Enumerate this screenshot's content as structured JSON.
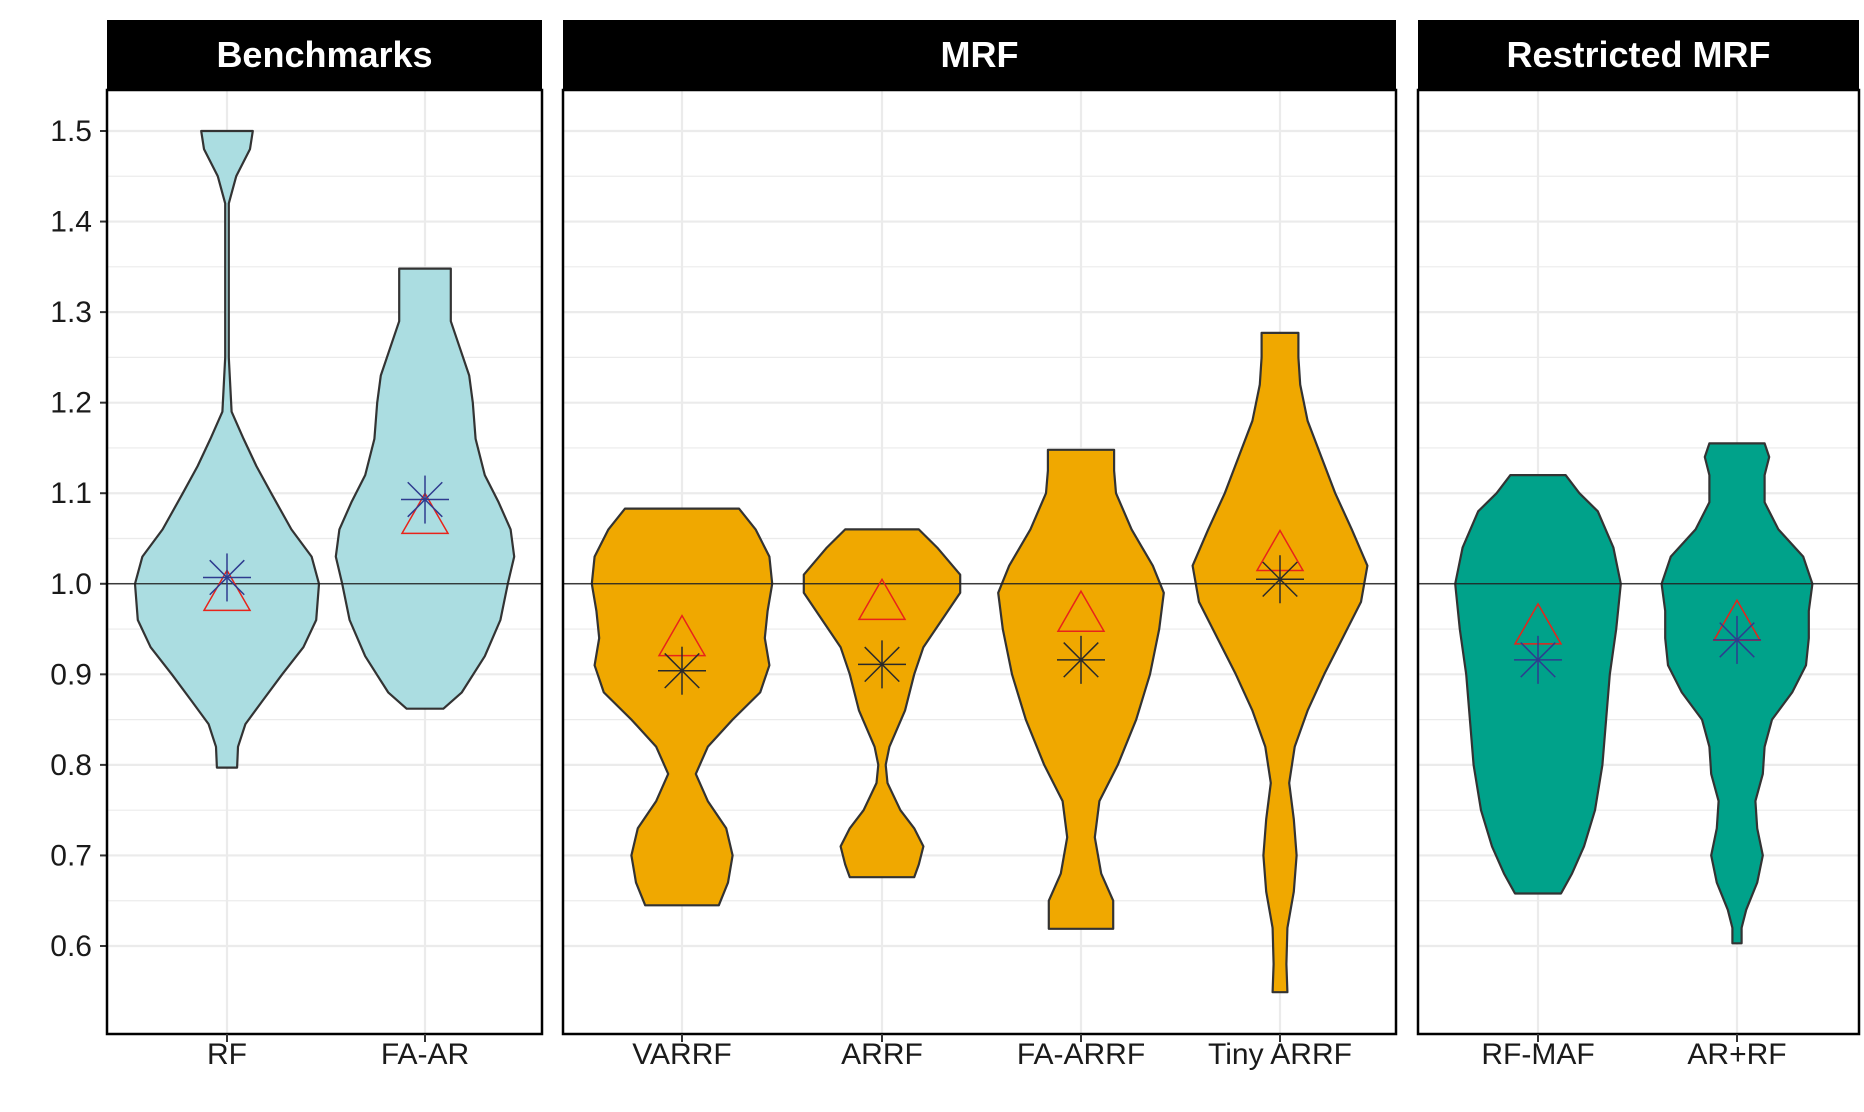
{
  "chart_data": {
    "type": "violin",
    "ylim": [
      0.55,
      1.5
    ],
    "y_ticks": [
      "0.6",
      "0.7",
      "0.8",
      "0.9",
      "1.0",
      "1.1",
      "1.2",
      "1.3",
      "1.4",
      "1.5"
    ],
    "reference_line": 1.0,
    "colors": {
      "benchmark_fill": "#abdde1",
      "mrf_fill": "#f0a800",
      "restricted_fill": "#00a28a",
      "outline": "#333333",
      "mean_marker": "#e8231a",
      "median_blue": "#2e3b8f",
      "median_dark": "#2a2a2a",
      "strip_bg": "#000000",
      "grid": "#ebebeb"
    },
    "panels": [
      {
        "title": "Benchmarks",
        "categories": [
          {
            "label": "RF",
            "min": 0.797,
            "max": 1.5,
            "mean": 0.985,
            "median": 1.007,
            "median_color": "blue",
            "profile": [
              [
                0.797,
                0.11
              ],
              [
                0.82,
                0.12
              ],
              [
                0.845,
                0.2
              ],
              [
                0.87,
                0.38
              ],
              [
                0.9,
                0.6
              ],
              [
                0.93,
                0.83
              ],
              [
                0.96,
                0.97
              ],
              [
                1.0,
                1.0
              ],
              [
                1.03,
                0.92
              ],
              [
                1.06,
                0.7
              ],
              [
                1.1,
                0.48
              ],
              [
                1.13,
                0.32
              ],
              [
                1.16,
                0.18
              ],
              [
                1.19,
                0.05
              ],
              [
                1.25,
                0.02
              ],
              [
                1.35,
                0.02
              ],
              [
                1.42,
                0.02
              ],
              [
                1.45,
                0.1
              ],
              [
                1.48,
                0.25
              ],
              [
                1.5,
                0.28
              ]
            ]
          },
          {
            "label": "FA-AR",
            "min": 0.862,
            "max": 1.348,
            "mean": 1.07,
            "median": 1.093,
            "median_color": "blue",
            "profile": [
              [
                0.862,
                0.2
              ],
              [
                0.88,
                0.4
              ],
              [
                0.92,
                0.65
              ],
              [
                0.96,
                0.82
              ],
              [
                1.0,
                0.9
              ],
              [
                1.03,
                0.97
              ],
              [
                1.06,
                0.93
              ],
              [
                1.09,
                0.8
              ],
              [
                1.12,
                0.65
              ],
              [
                1.16,
                0.55
              ],
              [
                1.2,
                0.52
              ],
              [
                1.23,
                0.48
              ],
              [
                1.26,
                0.38
              ],
              [
                1.29,
                0.28
              ],
              [
                1.32,
                0.28
              ],
              [
                1.348,
                0.28
              ]
            ]
          }
        ]
      },
      {
        "title": "MRF",
        "categories": [
          {
            "label": "VARRF",
            "min": 0.645,
            "max": 1.083,
            "mean": 0.935,
            "median": 0.904,
            "median_color": "dark",
            "profile": [
              [
                0.645,
                0.4
              ],
              [
                0.67,
                0.5
              ],
              [
                0.7,
                0.55
              ],
              [
                0.73,
                0.48
              ],
              [
                0.76,
                0.28
              ],
              [
                0.79,
                0.15
              ],
              [
                0.82,
                0.28
              ],
              [
                0.85,
                0.55
              ],
              [
                0.88,
                0.85
              ],
              [
                0.91,
                0.95
              ],
              [
                0.94,
                0.9
              ],
              [
                0.97,
                0.93
              ],
              [
                1.0,
                0.98
              ],
              [
                1.03,
                0.95
              ],
              [
                1.06,
                0.8
              ],
              [
                1.083,
                0.62
              ]
            ]
          },
          {
            "label": "ARRF",
            "min": 0.676,
            "max": 1.06,
            "mean": 0.975,
            "median": 0.911,
            "median_color": "dark",
            "profile": [
              [
                0.676,
                0.35
              ],
              [
                0.69,
                0.4
              ],
              [
                0.71,
                0.45
              ],
              [
                0.73,
                0.35
              ],
              [
                0.75,
                0.2
              ],
              [
                0.78,
                0.06
              ],
              [
                0.8,
                0.04
              ],
              [
                0.82,
                0.08
              ],
              [
                0.86,
                0.25
              ],
              [
                0.9,
                0.35
              ],
              [
                0.93,
                0.45
              ],
              [
                0.96,
                0.65
              ],
              [
                0.99,
                0.85
              ],
              [
                1.01,
                0.85
              ],
              [
                1.04,
                0.6
              ],
              [
                1.06,
                0.4
              ]
            ]
          },
          {
            "label": "FA-ARRF",
            "min": 0.619,
            "max": 1.148,
            "mean": 0.962,
            "median": 0.916,
            "median_color": "dark",
            "profile": [
              [
                0.619,
                0.35
              ],
              [
                0.65,
                0.35
              ],
              [
                0.68,
                0.22
              ],
              [
                0.72,
                0.15
              ],
              [
                0.76,
                0.2
              ],
              [
                0.8,
                0.4
              ],
              [
                0.85,
                0.6
              ],
              [
                0.9,
                0.75
              ],
              [
                0.95,
                0.85
              ],
              [
                0.99,
                0.9
              ],
              [
                1.02,
                0.78
              ],
              [
                1.06,
                0.55
              ],
              [
                1.1,
                0.38
              ],
              [
                1.125,
                0.36
              ],
              [
                1.148,
                0.36
              ]
            ]
          },
          {
            "label": "Tiny ARRF",
            "min": 0.549,
            "max": 1.277,
            "mean": 1.029,
            "median": 1.005,
            "median_color": "dark",
            "profile": [
              [
                0.549,
                0.08
              ],
              [
                0.58,
                0.07
              ],
              [
                0.62,
                0.08
              ],
              [
                0.66,
                0.15
              ],
              [
                0.7,
                0.18
              ],
              [
                0.74,
                0.15
              ],
              [
                0.78,
                0.1
              ],
              [
                0.82,
                0.16
              ],
              [
                0.86,
                0.3
              ],
              [
                0.9,
                0.48
              ],
              [
                0.94,
                0.68
              ],
              [
                0.98,
                0.88
              ],
              [
                1.02,
                0.95
              ],
              [
                1.06,
                0.78
              ],
              [
                1.1,
                0.6
              ],
              [
                1.14,
                0.45
              ],
              [
                1.18,
                0.3
              ],
              [
                1.22,
                0.22
              ],
              [
                1.25,
                0.2
              ],
              [
                1.277,
                0.2
              ]
            ]
          }
        ]
      },
      {
        "title": "Restricted MRF",
        "categories": [
          {
            "label": "RF-MAF",
            "min": 0.658,
            "max": 1.12,
            "mean": 0.948,
            "median": 0.916,
            "median_color": "blue",
            "profile": [
              [
                0.658,
                0.25
              ],
              [
                0.68,
                0.37
              ],
              [
                0.71,
                0.5
              ],
              [
                0.75,
                0.62
              ],
              [
                0.8,
                0.7
              ],
              [
                0.85,
                0.74
              ],
              [
                0.9,
                0.78
              ],
              [
                0.95,
                0.85
              ],
              [
                1.0,
                0.9
              ],
              [
                1.04,
                0.82
              ],
              [
                1.08,
                0.65
              ],
              [
                1.1,
                0.45
              ],
              [
                1.12,
                0.3
              ]
            ]
          },
          {
            "label": "AR+RF",
            "min": 0.603,
            "max": 1.155,
            "mean": 0.952,
            "median": 0.938,
            "median_color": "blue",
            "profile": [
              [
                0.603,
                0.05
              ],
              [
                0.62,
                0.05
              ],
              [
                0.64,
                0.1
              ],
              [
                0.67,
                0.22
              ],
              [
                0.7,
                0.28
              ],
              [
                0.73,
                0.22
              ],
              [
                0.76,
                0.2
              ],
              [
                0.79,
                0.28
              ],
              [
                0.82,
                0.3
              ],
              [
                0.85,
                0.38
              ],
              [
                0.88,
                0.6
              ],
              [
                0.91,
                0.75
              ],
              [
                0.94,
                0.78
              ],
              [
                0.97,
                0.78
              ],
              [
                1.0,
                0.82
              ],
              [
                1.03,
                0.72
              ],
              [
                1.06,
                0.45
              ],
              [
                1.09,
                0.3
              ],
              [
                1.12,
                0.3
              ],
              [
                1.14,
                0.35
              ],
              [
                1.155,
                0.3
              ]
            ]
          }
        ]
      }
    ]
  }
}
